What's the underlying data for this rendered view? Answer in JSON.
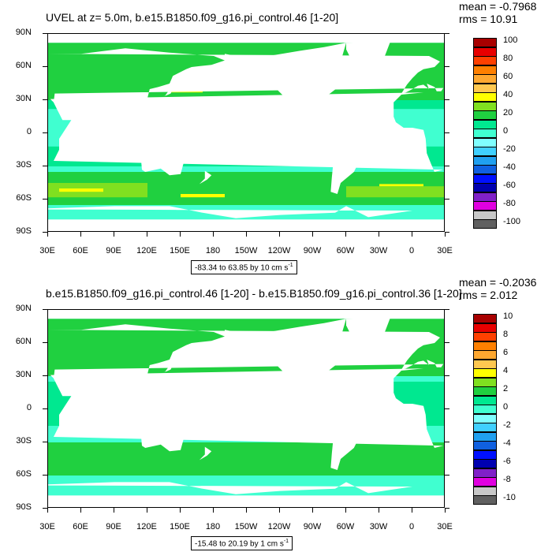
{
  "panels": [
    {
      "title": "UVEL at z=   5.0m, b.e15.B1850.f09_g16.pi_control.46 [1-20]",
      "mean_text": "mean = -0.7968",
      "rms_text": "rms = 10.91",
      "range_text": "-83.34 to 63.85 by 10 cm s",
      "range_sup": "-1",
      "colorbar_labels": [
        "100",
        "80",
        "60",
        "40",
        "20",
        "0",
        "-20",
        "-40",
        "-60",
        "-80",
        "-100"
      ],
      "colors": [
        "#a80000",
        "#e80000",
        "#ff4000",
        "#ff8000",
        "#ffa830",
        "#ffc850",
        "#ffff00",
        "#80e020",
        "#20d040",
        "#00e890",
        "#40ffd0",
        "#80ffff",
        "#40d0ff",
        "#20a0f0",
        "#1060e0",
        "#0010ff",
        "#0000b0",
        "#8020c8",
        "#e000e0",
        "#c8c8c8",
        "#606060"
      ]
    },
    {
      "title": "b.e15.B1850.f09_g16.pi_control.46 [1-20] - b.e15.B1850.f09_g16.pi_control.36 [1-20]",
      "mean_text": "mean = -0.2036",
      "rms_text": "rms = 2.012",
      "range_text": "-15.48 to 20.19 by 1 cm s",
      "range_sup": "-1",
      "colorbar_labels": [
        "10",
        "8",
        "6",
        "4",
        "2",
        "0",
        "-2",
        "-4",
        "-6",
        "-8",
        "-10"
      ],
      "colors": [
        "#a80000",
        "#e80000",
        "#ff4000",
        "#ff8000",
        "#ffa830",
        "#ffc850",
        "#ffff00",
        "#80e020",
        "#20d040",
        "#00e890",
        "#40ffd0",
        "#80ffff",
        "#40d0ff",
        "#20a0f0",
        "#1060e0",
        "#0010ff",
        "#0000b0",
        "#8020c8",
        "#e000e0",
        "#c8c8c8",
        "#606060"
      ]
    }
  ],
  "lat_labels": [
    "90N",
    "60N",
    "30N",
    "0",
    "30S",
    "60S",
    "90S"
  ],
  "lon_labels": [
    "30E",
    "60E",
    "90E",
    "120E",
    "150E",
    "180",
    "150W",
    "120W",
    "90W",
    "60W",
    "30W",
    "0",
    "30E"
  ]
}
